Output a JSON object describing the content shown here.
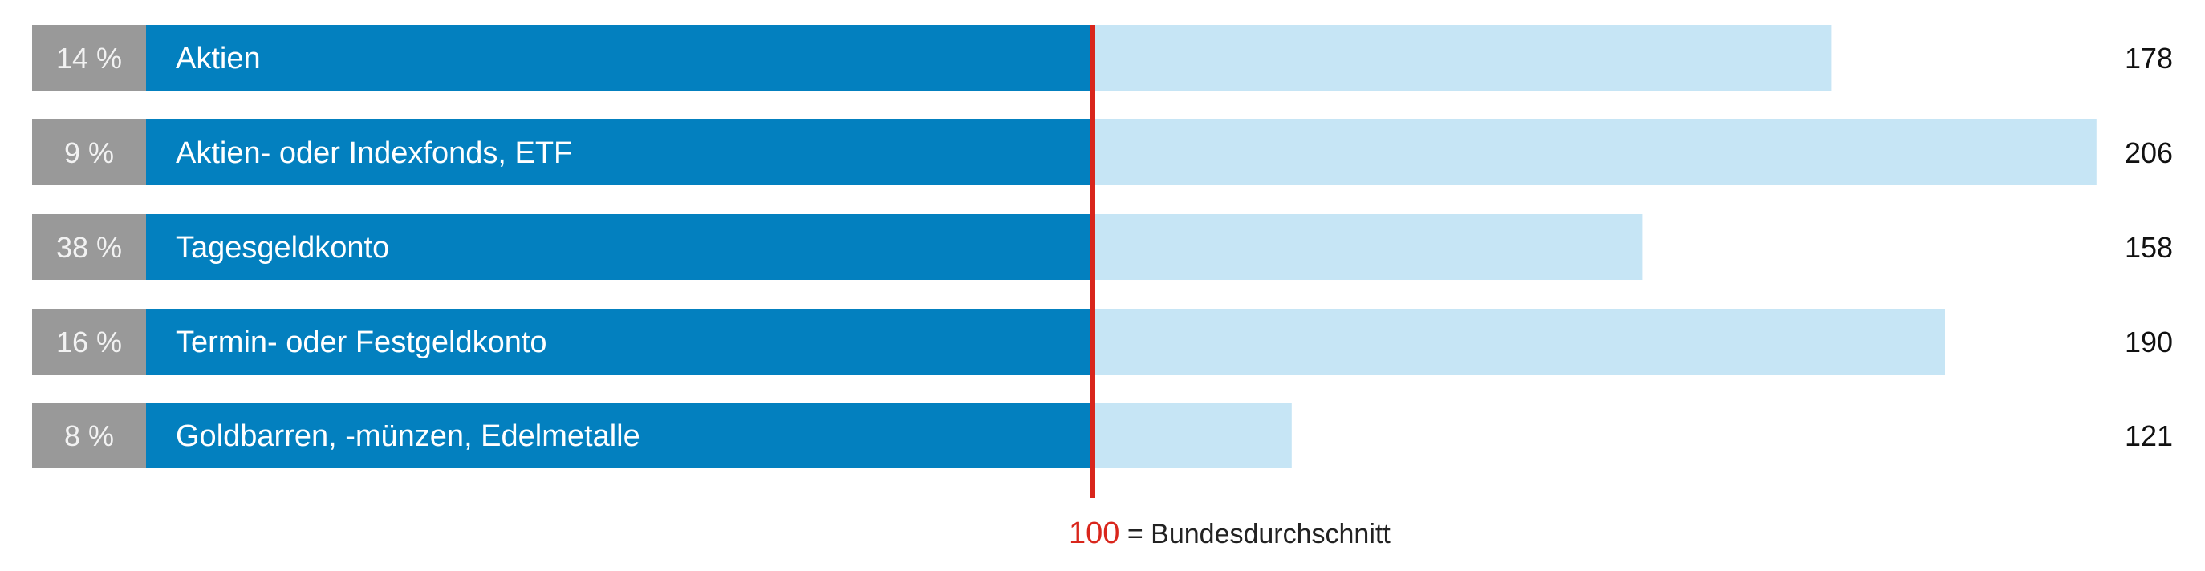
{
  "chart_data": {
    "type": "bar",
    "orientation": "horizontal",
    "categories": [
      "Aktien",
      "Aktien- oder Indexfonds, ETF",
      "Tagesgeldkonto",
      "Termin- oder Festgeldkonto",
      "Goldbarren, -münzen, Edelmetalle"
    ],
    "shares": [
      "14 %",
      "9 %",
      "38 %",
      "16 %",
      "8 %"
    ],
    "values": [
      178,
      206,
      158,
      190,
      121
    ],
    "reference_value": 100,
    "reference_label": "Bundesdurchschnitt",
    "xlim": [
      0,
      206
    ],
    "grid": false,
    "colors": {
      "share_box": "#999999",
      "below_reference": "#0380bf",
      "above_reference": "#c6e5f5",
      "reference_line": "#d9261c"
    }
  },
  "legend": {
    "number": "100",
    "text": "= Bundesdurchschnitt"
  }
}
